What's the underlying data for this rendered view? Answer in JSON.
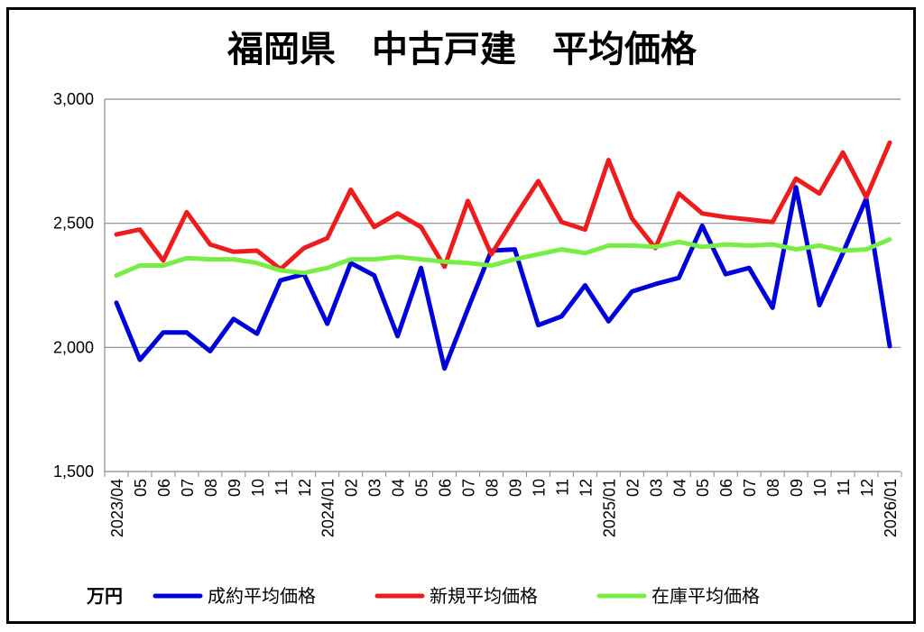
{
  "chart_data": {
    "type": "line",
    "title": "福岡県　中古戸建　平均価格",
    "unit_label": "万円",
    "ylim": [
      1500,
      3000
    ],
    "yticks": [
      1500,
      2000,
      2500,
      3000
    ],
    "ytick_labels": [
      "1,500",
      "2,000",
      "2,500",
      "3,000"
    ],
    "grid": true,
    "legend_position": "bottom",
    "categories": [
      "2023/04",
      "05",
      "06",
      "07",
      "08",
      "09",
      "10",
      "11",
      "12",
      "2024/01",
      "02",
      "03",
      "04",
      "05",
      "06",
      "07",
      "08",
      "09",
      "10",
      "11",
      "12",
      "2025/01",
      "02",
      "03",
      "04",
      "05",
      "06",
      "07",
      "08",
      "09",
      "10",
      "11",
      "12",
      "2026/01"
    ],
    "series": [
      {
        "name": "成約平均価格",
        "color": "#0000dd",
        "values": [
          2180,
          1950,
          2060,
          2060,
          1985,
          2115,
          2055,
          2270,
          2295,
          2095,
          2340,
          2290,
          2045,
          2320,
          1915,
          2155,
          2390,
          2395,
          2090,
          2125,
          2250,
          2105,
          2225,
          2255,
          2280,
          2490,
          2295,
          2320,
          2160,
          2645,
          2170,
          2380,
          2600,
          2005
        ]
      },
      {
        "name": "新規平均価格",
        "color": "#ee1c1c",
        "values": [
          2455,
          2475,
          2350,
          2545,
          2415,
          2385,
          2390,
          2315,
          2400,
          2440,
          2635,
          2485,
          2540,
          2485,
          2325,
          2590,
          2375,
          2525,
          2670,
          2505,
          2475,
          2755,
          2520,
          2400,
          2620,
          2540,
          2525,
          2515,
          2505,
          2680,
          2620,
          2785,
          2605,
          2825
        ]
      },
      {
        "name": "在庫平均価格",
        "color": "#77ee44",
        "values": [
          2290,
          2330,
          2330,
          2360,
          2355,
          2355,
          2340,
          2310,
          2300,
          2320,
          2355,
          2355,
          2365,
          2355,
          2345,
          2340,
          2330,
          2355,
          2375,
          2395,
          2380,
          2410,
          2410,
          2405,
          2425,
          2405,
          2415,
          2410,
          2415,
          2395,
          2410,
          2390,
          2395,
          2435
        ]
      }
    ]
  }
}
